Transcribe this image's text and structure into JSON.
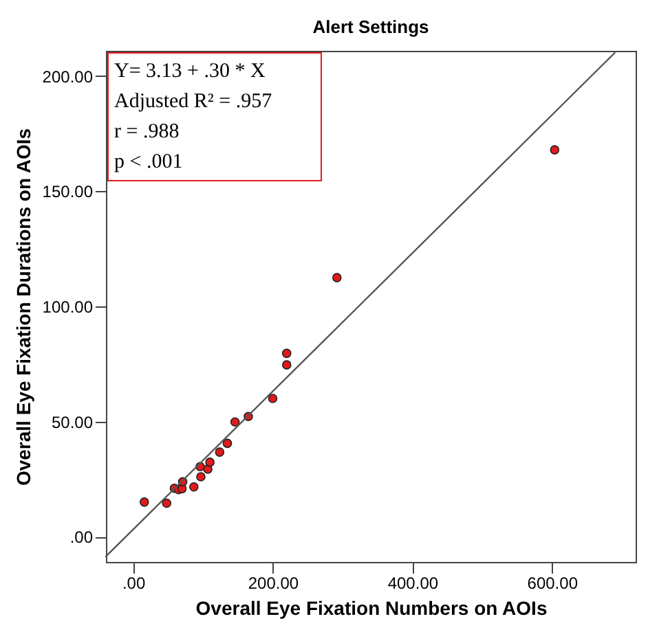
{
  "chart_data": {
    "type": "scatter",
    "title": "Alert Settings",
    "xlabel": "Overall Eye Fixation Numbers on AOIs",
    "ylabel": "Overall Eye Fixation Durations on AOIs",
    "xlim": [
      -39,
      720
    ],
    "ylim": [
      -11,
      211
    ],
    "xticks": [
      {
        "value": 0,
        "label": ".00"
      },
      {
        "value": 200,
        "label": "200.00"
      },
      {
        "value": 400,
        "label": "400.00"
      },
      {
        "value": 600,
        "label": "600.00"
      }
    ],
    "yticks": [
      {
        "value": 0,
        "label": ".00"
      },
      {
        "value": 50,
        "label": "50.00"
      },
      {
        "value": 100,
        "label": "100.00"
      },
      {
        "value": 150,
        "label": "150.00"
      },
      {
        "value": 200,
        "label": "200.00"
      }
    ],
    "series": [
      {
        "color": "#e31a1c",
        "marker": "circle",
        "x": [
          16,
          48,
          59,
          65,
          70,
          71,
          87,
          97,
          96,
          107,
          110,
          124,
          135,
          146,
          165,
          200,
          220,
          220,
          292,
          604
        ],
        "values": [
          15,
          14.5,
          21,
          20.4,
          20.8,
          23.8,
          21.6,
          26,
          30.4,
          29.3,
          32.3,
          36.7,
          40.5,
          49.8,
          52.2,
          60,
          74.6,
          79.6,
          112.5,
          168
        ]
      },
      {
        "type": "line",
        "marker": "none",
        "color": "#555555",
        "x": [
          -39,
          690
        ],
        "values": [
          -8.6,
          210.1
        ]
      }
    ],
    "annotations": [
      "Y= 3.13 + .30 * X",
      "Adjusted R² = .957",
      "r = .988",
      "p < .001"
    ],
    "grid": false
  }
}
